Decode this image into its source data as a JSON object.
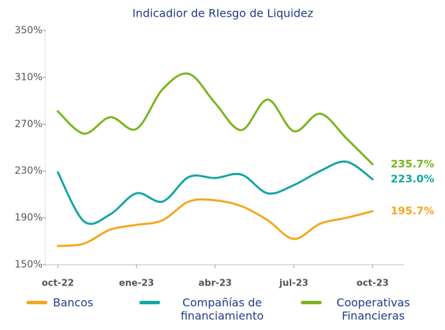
{
  "chart_data": {
    "type": "line",
    "title": "Indicadior de RIesgo de Liquidez",
    "categories": [
      "oct-22",
      null,
      null,
      "ene-23",
      null,
      null,
      "abr-23",
      null,
      null,
      "jul-23",
      null,
      null,
      "oct-23"
    ],
    "ylim": [
      150,
      350
    ],
    "yticks": [
      {
        "value": 150,
        "label": "150%"
      },
      {
        "value": 190,
        "label": "190%"
      },
      {
        "value": 230,
        "label": "230%"
      },
      {
        "value": 270,
        "label": "270%"
      },
      {
        "value": 310,
        "label": "310%"
      },
      {
        "value": 350,
        "label": "350%"
      }
    ],
    "series": [
      {
        "name": "Bancos",
        "color": "#f5a61e",
        "values": [
          166,
          168,
          180,
          184,
          188,
          204,
          205,
          200,
          188,
          172,
          185,
          190,
          195.7
        ],
        "value_labels": [
          null,
          null,
          null,
          null,
          null,
          null,
          null,
          null,
          null,
          null,
          null,
          null,
          "195.7%"
        ]
      },
      {
        "name": "Compañías de financiamiento",
        "color": "#13a6a0",
        "values": [
          229,
          187,
          193,
          211,
          204,
          225,
          224,
          227,
          211,
          218,
          230,
          238,
          223.0
        ],
        "value_labels": [
          null,
          null,
          null,
          null,
          null,
          null,
          null,
          null,
          null,
          null,
          null,
          null,
          "223.0%"
        ]
      },
      {
        "name": "Cooperativas Financieras",
        "color": "#7ab51d",
        "values": [
          281,
          262,
          276,
          266,
          300,
          313,
          288,
          265,
          291,
          264,
          279,
          258,
          235.7
        ],
        "value_labels": [
          null,
          null,
          null,
          null,
          null,
          null,
          null,
          null,
          null,
          null,
          null,
          null,
          "235.7%"
        ]
      }
    ]
  }
}
